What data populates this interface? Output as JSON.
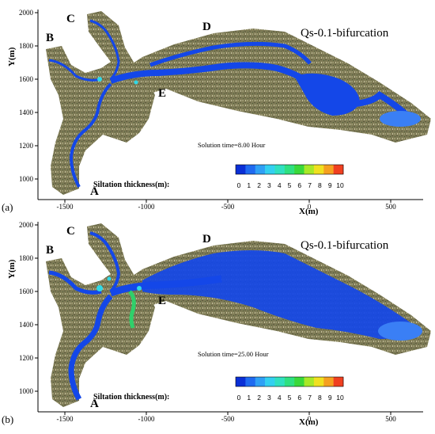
{
  "panels": [
    {
      "label": "(a)",
      "title": "Qs-0.1-bifurcation",
      "solution_time": "Solution time=8.00 Hour",
      "xlabel": "X(m)",
      "ylabel": "Y(m)",
      "xticks": [
        "-1500",
        "-1000",
        "-500",
        "0",
        "500"
      ],
      "yticks": [
        "2000",
        "1800",
        "1600",
        "1400",
        "1200",
        "1000"
      ],
      "points": {
        "A": "A",
        "B": "B",
        "C": "C",
        "D": "D",
        "E": "E"
      },
      "legend_label": "Siltation thickness(m):",
      "siltation_extent": 0.35
    },
    {
      "label": "(b)",
      "title": "Qs-0.1-bifurcation",
      "solution_time": "Solution time=25.00 Hour",
      "xlabel": "X(m)",
      "ylabel": "Y(m)",
      "xticks": [
        "-1500",
        "-1000",
        "-500",
        "0",
        "500"
      ],
      "yticks": [
        "2000",
        "1800",
        "1600",
        "1400",
        "1200",
        "1000"
      ],
      "points": {
        "A": "A",
        "B": "B",
        "C": "C",
        "D": "D",
        "E": "E"
      },
      "legend_label": "Siltation thickness(m):",
      "siltation_extent": 0.8
    }
  ],
  "legend": {
    "ticks": [
      "0",
      "1",
      "2",
      "3",
      "4",
      "5",
      "6",
      "7",
      "8",
      "9",
      "10"
    ],
    "colors": [
      "#0a2fd6",
      "#1f6af0",
      "#2fa0f5",
      "#33d0f0",
      "#30e0c0",
      "#2fe080",
      "#3ad83a",
      "#a8e828",
      "#f0e020",
      "#f5a020",
      "#f04020"
    ]
  },
  "colors": {
    "terrain": "#7d7a55",
    "terrain_dark": "#5e5b40",
    "river": "#1447e8",
    "river_light": "#3a7ff5",
    "deposit_cyan": "#2fd9e8",
    "deposit_green": "#2fd06a"
  }
}
